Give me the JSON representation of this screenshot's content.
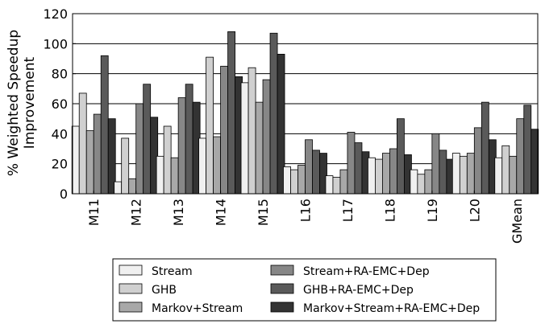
{
  "chart_data": {
    "type": "bar",
    "ylabel_lines": [
      "% Weighted Speedup",
      "Improvement"
    ],
    "ylim": [
      0,
      120
    ],
    "yticks": [
      0,
      20,
      40,
      60,
      80,
      100,
      120
    ],
    "grid": "horizontal",
    "legend_placement": "bottom",
    "categories": [
      "M11",
      "M12",
      "M13",
      "M14",
      "M15",
      "L16",
      "L17",
      "L18",
      "L19",
      "L20",
      "GMean"
    ],
    "series": [
      {
        "name": "Stream",
        "color": "#f0f0f0",
        "values": [
          45,
          8,
          25,
          37,
          74,
          18,
          12,
          24,
          16,
          27,
          24
        ]
      },
      {
        "name": "GHB",
        "color": "#d0d0d0",
        "values": [
          67,
          37,
          45,
          91,
          84,
          16,
          11,
          23,
          13,
          25,
          32
        ]
      },
      {
        "name": "Markov+Stream",
        "color": "#a8a8a8",
        "values": [
          42,
          10,
          24,
          38,
          61,
          19,
          16,
          27,
          16,
          27,
          25
        ]
      },
      {
        "name": "Stream+RA-EMC+Dep",
        "color": "#878787",
        "values": [
          53,
          60,
          64,
          85,
          76,
          36,
          41,
          30,
          40,
          44,
          50
        ]
      },
      {
        "name": "GHB+RA-EMC+Dep",
        "color": "#5a5a5a",
        "values": [
          92,
          73,
          73,
          108,
          107,
          29,
          34,
          50,
          29,
          61,
          59
        ]
      },
      {
        "name": "Markov+Stream+RA-EMC+Dep",
        "color": "#333333",
        "values": [
          50,
          51,
          61,
          78,
          93,
          27,
          28,
          26,
          23,
          36,
          43
        ]
      }
    ]
  }
}
